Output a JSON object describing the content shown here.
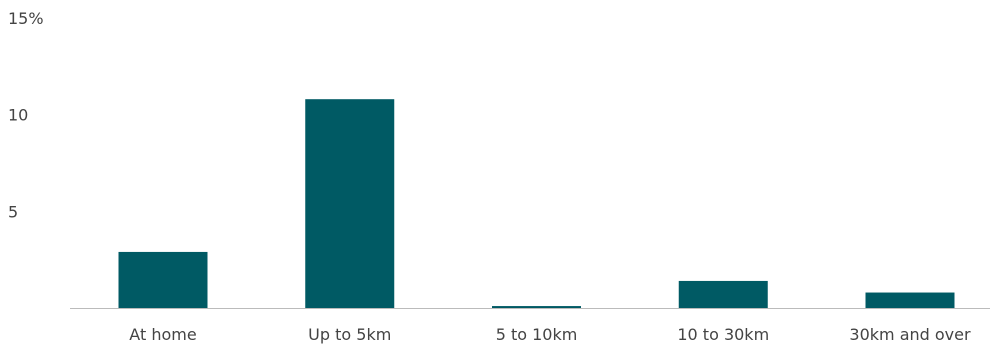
{
  "chart_data": {
    "type": "bar",
    "title": "",
    "xlabel": "",
    "ylabel": "",
    "categories": [
      "At home",
      "Up to 5km",
      "5 to 10km",
      "10 to 30km",
      "30km and over"
    ],
    "values": [
      2.9,
      10.8,
      0.1,
      1.4,
      0.8
    ],
    "ylim": [
      0,
      15
    ],
    "yticks": [
      5,
      10,
      15
    ],
    "ytick_labels": [
      "5",
      "10",
      "15%"
    ],
    "bar_color": "#005a64",
    "axis_color": "#bbbbbb",
    "grid": false,
    "legend": "none"
  }
}
